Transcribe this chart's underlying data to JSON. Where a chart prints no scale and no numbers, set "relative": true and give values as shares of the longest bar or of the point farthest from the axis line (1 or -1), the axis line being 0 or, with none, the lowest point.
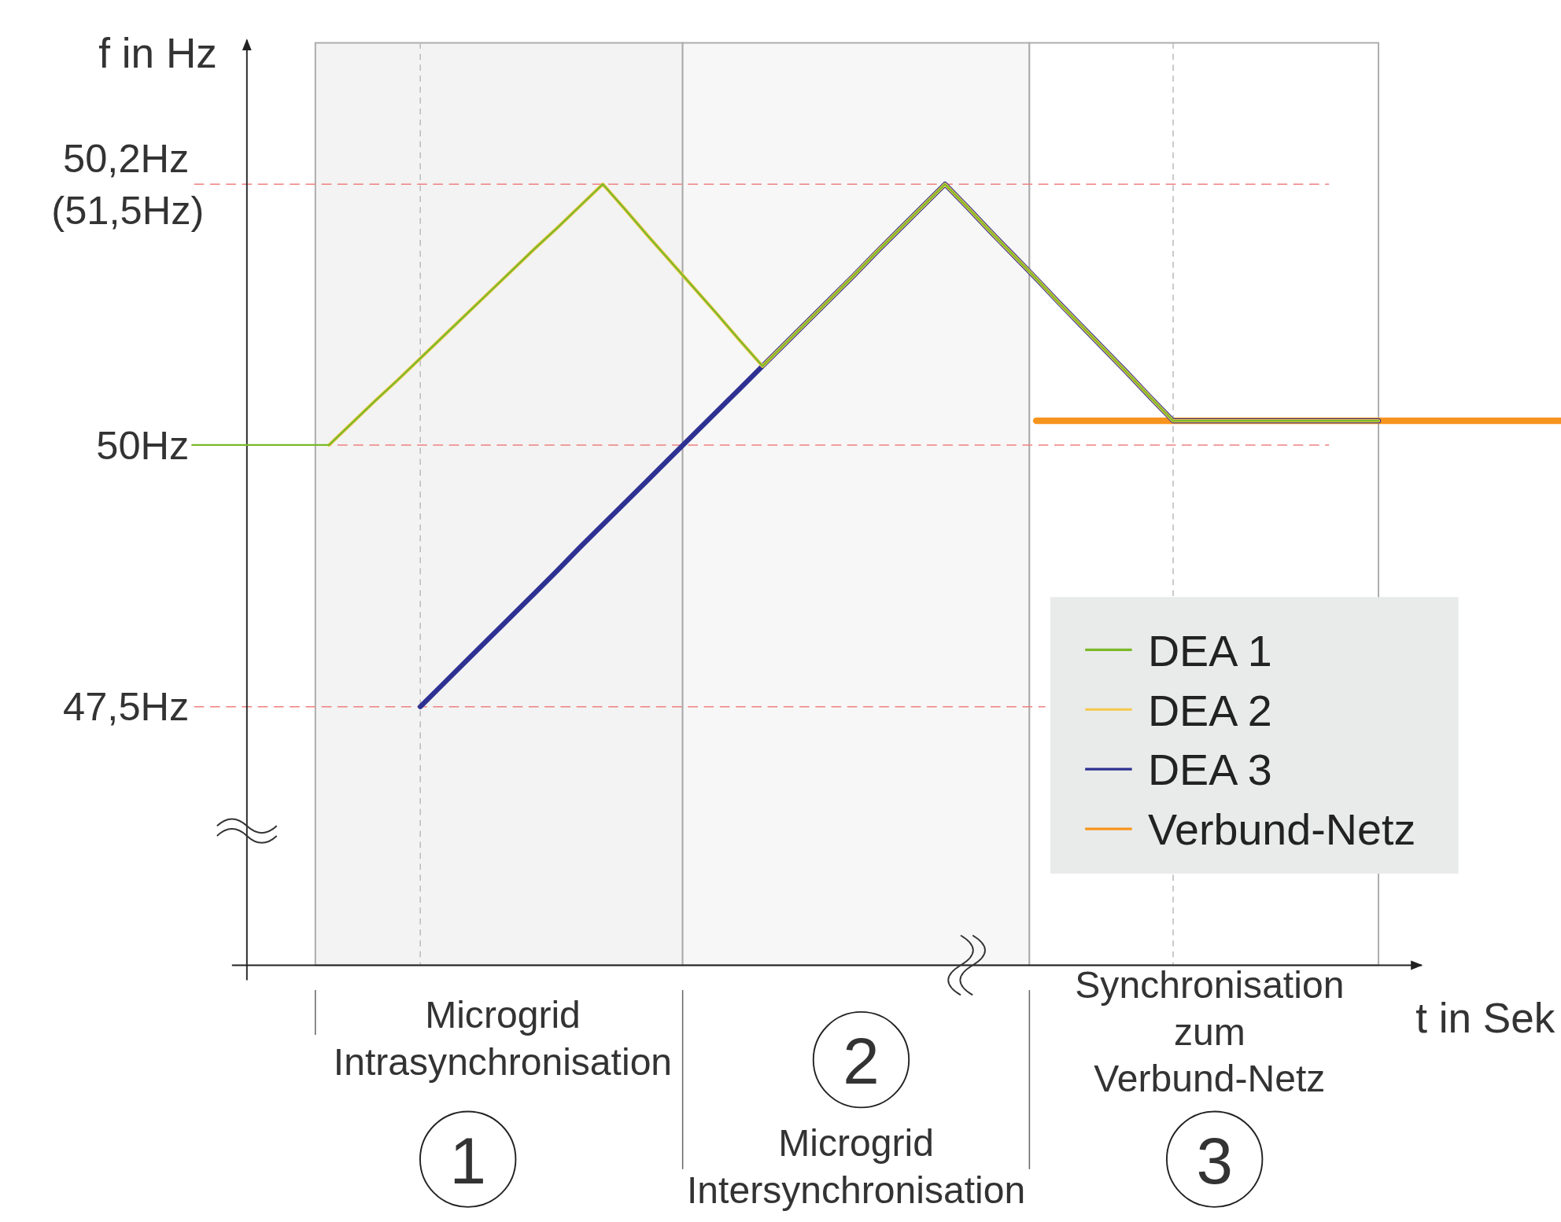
{
  "chart_data": {
    "type": "line",
    "ylabel": "f in Hz",
    "xlabel": "t in Sek",
    "relative": true,
    "tick_labels": false,
    "categories": [
      null,
      null,
      null,
      null,
      null,
      null,
      null,
      null,
      null,
      null,
      null,
      null,
      null,
      null,
      null,
      null,
      null,
      null,
      null,
      null,
      null,
      null,
      null,
      null,
      null,
      null,
      null,
      null,
      null,
      null,
      null,
      null,
      null,
      null,
      null,
      null,
      null,
      null,
      null,
      null,
      null,
      null,
      null,
      null,
      null,
      null,
      null,
      null,
      null,
      null,
      null,
      null,
      null,
      null,
      null,
      null,
      null,
      null,
      null,
      null,
      null
    ],
    "legend": "bottom right",
    "marker": "none",
    "series": [
      {
        "name": "DEA 1",
        "color": "#7ab929",
        "values": [
          0.666,
          0.666,
          0.666,
          0.666,
          0.666,
          0.666,
          0.666,
          0.694,
          0.722,
          0.749,
          0.777,
          0.805,
          0.833,
          0.861,
          0.889,
          0.917,
          0.944,
          0.972,
          1,
          0.967,
          0.933,
          0.9,
          0.867,
          0.834,
          0.8,
          0.767,
          0.796,
          0.825,
          0.854,
          0.883,
          0.913,
          0.942,
          0.971,
          1,
          0.97,
          0.939,
          0.909,
          0.879,
          0.848,
          0.818,
          0.788,
          0.758,
          0.727,
          0.697,
          0.697,
          0.697,
          0.697,
          0.697,
          0.697,
          0.697,
          0.697,
          0.697,
          0.697,
          null,
          null,
          null,
          null,
          null,
          null,
          null,
          null
        ]
      },
      {
        "name": "DEA 2",
        "color": "#f5c84c",
        "values": [
          null,
          null,
          null,
          null,
          null,
          null,
          0.666,
          0.694,
          0.722,
          0.749,
          0.777,
          0.805,
          0.833,
          0.861,
          0.889,
          0.917,
          0.944,
          0.972,
          1,
          0.967,
          0.933,
          0.9,
          0.867,
          0.834,
          0.8,
          0.767,
          0.796,
          0.825,
          0.854,
          0.883,
          0.913,
          0.942,
          0.971,
          1,
          0.97,
          0.939,
          0.909,
          0.879,
          0.848,
          0.818,
          0.788,
          0.758,
          0.727,
          0.697,
          0.697,
          0.697,
          0.697,
          0.697,
          0.697,
          0.697,
          0.697,
          0.697,
          0.697,
          null,
          null,
          null,
          null,
          null,
          null,
          null,
          null
        ]
      },
      {
        "name": "DEA 3",
        "color": "#2e3192",
        "values": [
          null,
          null,
          null,
          null,
          null,
          null,
          null,
          null,
          null,
          null,
          0.331,
          0.36,
          0.389,
          0.418,
          0.447,
          0.476,
          0.505,
          0.535,
          0.564,
          0.593,
          0.622,
          0.651,
          0.68,
          0.709,
          0.738,
          0.767,
          0.796,
          0.825,
          0.854,
          0.883,
          0.913,
          0.942,
          0.971,
          1,
          0.97,
          0.939,
          0.909,
          0.879,
          0.848,
          0.818,
          0.788,
          0.758,
          0.727,
          0.697,
          0.697,
          0.697,
          0.697,
          0.697,
          0.697,
          0.697,
          0.697,
          0.697,
          0.697,
          null,
          null,
          null,
          null,
          null,
          null,
          null,
          null
        ]
      },
      {
        "name": "Verbund-Netz",
        "color": "#f7941d",
        "values": [
          null,
          null,
          null,
          null,
          null,
          null,
          null,
          null,
          null,
          null,
          null,
          null,
          null,
          null,
          null,
          null,
          null,
          null,
          null,
          null,
          null,
          null,
          null,
          null,
          null,
          null,
          null,
          null,
          null,
          null,
          null,
          null,
          null,
          null,
          null,
          null,
          null,
          0.697,
          0.697,
          0.697,
          0.697,
          0.697,
          0.697,
          0.697,
          0.697,
          0.697,
          0.697,
          0.697,
          0.697,
          0.697,
          0.697,
          0.697,
          0.697,
          0.697,
          0.697,
          0.697,
          0.697,
          0.697,
          0.697,
          0.697,
          0.697
        ]
      }
    ],
    "ref_lines": [
      {
        "axis": "y",
        "value": 1,
        "label": "50,2Hz\n(51,5Hz)",
        "color": "#f08080",
        "line_style": "dashed"
      },
      {
        "axis": "y",
        "value": 0.666,
        "label": "50Hz",
        "color": "#f08080",
        "line_style": "dashed"
      },
      {
        "axis": "y",
        "value": 0.331,
        "label": "47,5Hz",
        "color": "#f08080",
        "line_style": "dashed"
      }
    ],
    "annotations": [
      "Microgrid\nIntrasynchronisation",
      "1",
      "2",
      "Synchronisation\nzum\nVerbund-Netz",
      "3",
      "Microgrid\nIntersynchronisation"
    ]
  }
}
